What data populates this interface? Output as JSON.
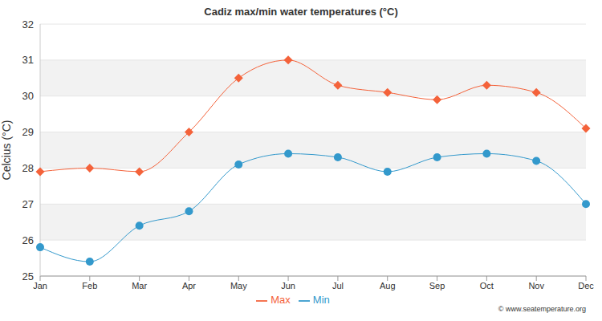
{
  "chart_data": {
    "type": "line",
    "title": "Cadiz max/min water temperatures (°C)",
    "y_label": "Celcius (°C)",
    "annotations": [
      "© www.seatemperature.org"
    ],
    "categories": [
      "Jan",
      "Feb",
      "Mar",
      "Apr",
      "May",
      "Jun",
      "Jul",
      "Aug",
      "Sep",
      "Oct",
      "Nov",
      "Dec"
    ],
    "series": [
      {
        "name": "Max",
        "color": "#f4623a",
        "marker": "diamond",
        "values": [
          27.9,
          28.0,
          27.9,
          29.0,
          30.5,
          31.0,
          30.3,
          30.1,
          29.9,
          30.3,
          30.1,
          29.1
        ]
      },
      {
        "name": "Min",
        "color": "#3399cc",
        "marker": "circle",
        "values": [
          25.8,
          25.4,
          26.4,
          26.8,
          28.1,
          28.4,
          28.3,
          27.9,
          28.3,
          28.4,
          28.2,
          27.0
        ]
      }
    ],
    "ylim": [
      25,
      32
    ],
    "yticks": [
      25,
      26,
      27,
      28,
      29,
      30,
      31,
      32
    ],
    "grid": true,
    "legend": "bottom"
  }
}
